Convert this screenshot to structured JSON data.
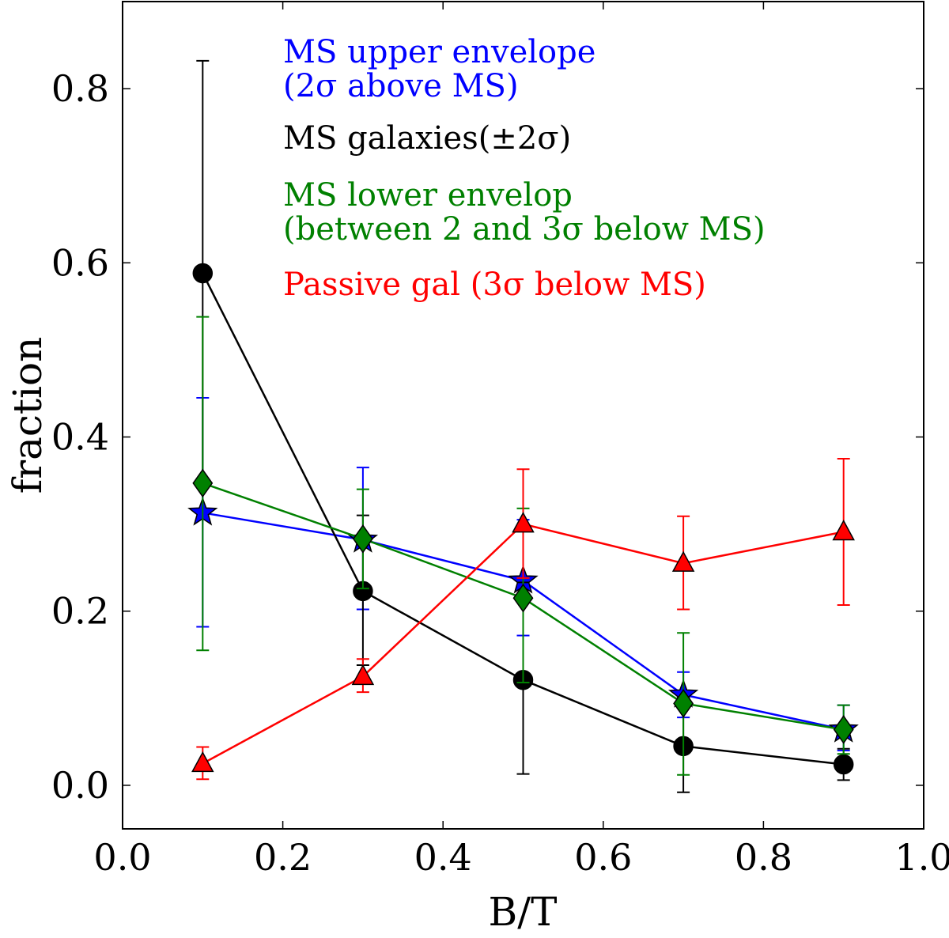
{
  "chart_data": {
    "type": "line",
    "xlabel": "B/T",
    "ylabel": "fraction",
    "xlim": [
      0.0,
      1.0
    ],
    "ylim": [
      -0.05,
      0.9
    ],
    "x_ticks": [
      "0.0",
      "0.2",
      "0.4",
      "0.6",
      "0.8",
      "1.0"
    ],
    "y_ticks": [
      "0.0",
      "0.2",
      "0.4",
      "0.6",
      "0.8"
    ],
    "grid": false,
    "legend_placement": "top-center (text annotations)",
    "x": [
      0.1,
      0.3,
      0.5,
      0.7,
      0.9
    ],
    "series": [
      {
        "name": "MS upper envelope",
        "label_lines": [
          "MS upper envelope",
          "(2σ above MS)"
        ],
        "color": "#0000ff",
        "marker": "star",
        "values": [
          0.313,
          0.282,
          0.235,
          0.104,
          0.064
        ],
        "err_low": [
          0.182,
          0.202,
          0.172,
          0.078,
          0.04
        ],
        "err_high": [
          0.445,
          0.365,
          0.305,
          0.13,
          0.092
        ]
      },
      {
        "name": "MS galaxies",
        "label_lines": [
          "MS galaxies(±2σ)"
        ],
        "color": "#000000",
        "marker": "circle",
        "values": [
          0.588,
          0.223,
          0.121,
          0.045,
          0.024
        ],
        "err_low": [
          0.345,
          0.138,
          0.013,
          -0.008,
          0.006
        ],
        "err_high": [
          0.832,
          0.31,
          0.233,
          0.098,
          0.042
        ]
      },
      {
        "name": "MS lower envelop",
        "label_lines": [
          "MS lower envelop",
          "(between 2 and 3σ below MS)"
        ],
        "color": "#008000",
        "marker": "diamond",
        "values": [
          0.347,
          0.283,
          0.215,
          0.094,
          0.064
        ],
        "err_low": [
          0.155,
          0.226,
          0.118,
          0.012,
          0.036
        ],
        "err_high": [
          0.538,
          0.34,
          0.318,
          0.175,
          0.092
        ]
      },
      {
        "name": "Passive gal",
        "label_lines": [
          "Passive gal (3σ below MS)"
        ],
        "color": "#ff0000",
        "marker": "triangle",
        "values": [
          0.025,
          0.125,
          0.3,
          0.255,
          0.291
        ],
        "err_low": [
          0.007,
          0.107,
          0.238,
          0.202,
          0.207
        ],
        "err_high": [
          0.044,
          0.145,
          0.363,
          0.309,
          0.375
        ]
      }
    ]
  }
}
